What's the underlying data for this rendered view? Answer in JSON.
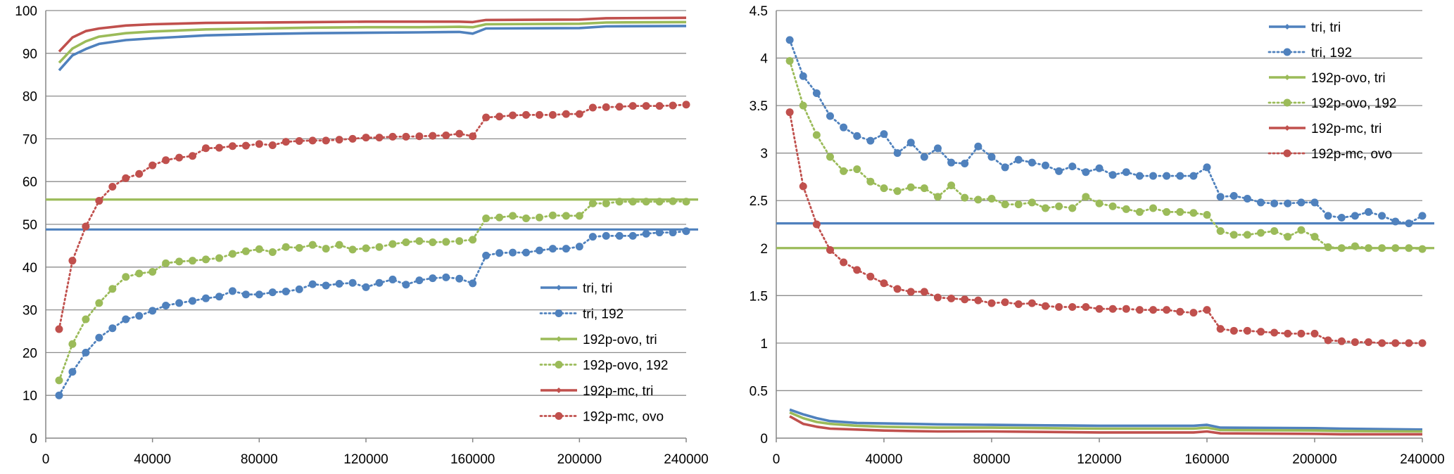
{
  "colors": {
    "blue": "#4f81bd",
    "green": "#9bbb59",
    "red": "#c0504d",
    "grid": "#8c8c8c",
    "axis": "#868686"
  },
  "chart_data": [
    {
      "type": "line",
      "xlim": [
        0,
        240000
      ],
      "ylim": [
        0,
        100
      ],
      "xticks": [
        "0",
        "40000",
        "80000",
        "120000",
        "160000",
        "200000",
        "240000"
      ],
      "yticks": [
        "0",
        "10",
        "20",
        "30",
        "40",
        "50",
        "60",
        "70",
        "80",
        "90",
        "100"
      ],
      "legend_position": "bottom-right",
      "reference_lines": [
        {
          "y": 48.8,
          "color": "blue"
        },
        {
          "y": 55.8,
          "color": "green"
        }
      ],
      "series": [
        {
          "name": "tri, tri",
          "color": "blue",
          "style": "solid",
          "x": [
            5000,
            10000,
            15000,
            20000,
            30000,
            40000,
            60000,
            80000,
            100000,
            120000,
            140000,
            155000,
            160000,
            165000,
            200000,
            210000,
            240000
          ],
          "y": [
            86,
            89.5,
            91,
            92.2,
            93.1,
            93.5,
            94.2,
            94.5,
            94.7,
            94.8,
            94.9,
            95,
            94.6,
            95.8,
            95.9,
            96.3,
            96.4
          ]
        },
        {
          "name": "tri, 192",
          "color": "blue",
          "style": "dotted",
          "x": [
            5000,
            10000,
            15000,
            20000,
            25000,
            30000,
            35000,
            40000,
            45000,
            50000,
            55000,
            60000,
            65000,
            70000,
            75000,
            80000,
            85000,
            90000,
            95000,
            100000,
            105000,
            110000,
            115000,
            120000,
            125000,
            130000,
            135000,
            140000,
            145000,
            150000,
            155000,
            160000,
            165000,
            170000,
            175000,
            180000,
            185000,
            190000,
            195000,
            200000,
            205000,
            210000,
            215000,
            220000,
            225000,
            230000,
            235000,
            240000
          ],
          "y": [
            10,
            15.5,
            20,
            23.5,
            25.7,
            27.8,
            28.6,
            29.8,
            31,
            31.6,
            32.1,
            32.7,
            33.1,
            34.4,
            33.6,
            33.6,
            34.1,
            34.3,
            34.8,
            36,
            35.7,
            36.1,
            36.3,
            35.3,
            36.3,
            37.1,
            35.9,
            36.9,
            37.4,
            37.6,
            37.3,
            36.2,
            42.7,
            43.3,
            43.4,
            43.4,
            43.9,
            44.3,
            44.3,
            44.8,
            47.1,
            47.3,
            47.3,
            47.3,
            47.8,
            48.1,
            48.1,
            48.4
          ]
        },
        {
          "name": "192p-ovo, tri",
          "color": "green",
          "style": "solid",
          "x": [
            5000,
            10000,
            15000,
            20000,
            30000,
            40000,
            60000,
            80000,
            100000,
            120000,
            140000,
            155000,
            160000,
            165000,
            200000,
            210000,
            240000
          ],
          "y": [
            87.8,
            91.1,
            92.8,
            93.9,
            94.7,
            95.1,
            95.6,
            95.8,
            96,
            96.1,
            96.1,
            96.2,
            96.1,
            96.8,
            96.9,
            97.2,
            97.3
          ]
        },
        {
          "name": "192p-ovo, 192",
          "color": "green",
          "style": "dotted",
          "x": [
            5000,
            10000,
            15000,
            20000,
            25000,
            30000,
            35000,
            40000,
            45000,
            50000,
            55000,
            60000,
            65000,
            70000,
            75000,
            80000,
            85000,
            90000,
            95000,
            100000,
            105000,
            110000,
            115000,
            120000,
            125000,
            130000,
            135000,
            140000,
            145000,
            150000,
            155000,
            160000,
            165000,
            170000,
            175000,
            180000,
            185000,
            190000,
            195000,
            200000,
            205000,
            210000,
            215000,
            220000,
            225000,
            230000,
            235000,
            240000
          ],
          "y": [
            13.5,
            22,
            27.8,
            31.6,
            34.9,
            37.7,
            38.5,
            38.9,
            40.9,
            41.3,
            41.5,
            41.8,
            42.1,
            43.1,
            43.7,
            44.2,
            43.5,
            44.7,
            44.5,
            45.2,
            44.3,
            45.2,
            44.1,
            44.4,
            44.7,
            45.4,
            45.8,
            46.1,
            45.8,
            45.9,
            46.1,
            46.4,
            51.4,
            51.6,
            52,
            51.4,
            51.6,
            52.1,
            52,
            52,
            54.9,
            54.9,
            55.3,
            55.3,
            55.3,
            55.3,
            55.4,
            55.3
          ]
        },
        {
          "name": "192p-mc, tri",
          "color": "red",
          "style": "solid",
          "x": [
            5000,
            10000,
            15000,
            20000,
            30000,
            40000,
            60000,
            80000,
            100000,
            120000,
            140000,
            155000,
            160000,
            165000,
            200000,
            210000,
            240000
          ],
          "y": [
            90.4,
            93.7,
            95.2,
            95.8,
            96.5,
            96.8,
            97.1,
            97.2,
            97.3,
            97.4,
            97.4,
            97.4,
            97.3,
            97.8,
            97.9,
            98.2,
            98.3
          ]
        },
        {
          "name": "192p-mc, ovo",
          "color": "red",
          "style": "dotted",
          "x": [
            5000,
            10000,
            15000,
            20000,
            25000,
            30000,
            35000,
            40000,
            45000,
            50000,
            55000,
            60000,
            65000,
            70000,
            75000,
            80000,
            85000,
            90000,
            95000,
            100000,
            105000,
            110000,
            115000,
            120000,
            125000,
            130000,
            135000,
            140000,
            145000,
            150000,
            155000,
            160000,
            165000,
            170000,
            175000,
            180000,
            185000,
            190000,
            195000,
            200000,
            205000,
            210000,
            215000,
            220000,
            225000,
            230000,
            235000,
            240000
          ],
          "y": [
            25.5,
            41.5,
            49.5,
            55.5,
            58.8,
            60.8,
            61.8,
            63.8,
            65,
            65.6,
            66,
            67.8,
            67.9,
            68.3,
            68.4,
            68.8,
            68.5,
            69.3,
            69.5,
            69.6,
            69.6,
            69.8,
            70,
            70.3,
            70.3,
            70.5,
            70.5,
            70.6,
            70.7,
            70.8,
            71.2,
            70.6,
            75,
            75.2,
            75.5,
            75.6,
            75.6,
            75.6,
            75.8,
            75.8,
            77.3,
            77.4,
            77.5,
            77.7,
            77.7,
            77.7,
            77.8,
            78
          ]
        }
      ]
    },
    {
      "type": "line",
      "xlim": [
        0,
        240000
      ],
      "ylim": [
        0,
        4.5
      ],
      "xticks": [
        "0",
        "40000",
        "80000",
        "120000",
        "160000",
        "200000",
        "240000"
      ],
      "yticks": [
        "0",
        "0.5",
        "1",
        "1.5",
        "2",
        "2.5",
        "3",
        "3.5",
        "4",
        "4.5"
      ],
      "legend_position": "top-right",
      "reference_lines": [
        {
          "y": 2.26,
          "color": "blue"
        },
        {
          "y": 2.0,
          "color": "green"
        }
      ],
      "series": [
        {
          "name": "tri, tri",
          "color": "blue",
          "style": "solid",
          "x": [
            5000,
            10000,
            15000,
            20000,
            30000,
            40000,
            50000,
            60000,
            80000,
            100000,
            120000,
            140000,
            155000,
            160000,
            165000,
            200000,
            210000,
            240000
          ],
          "y": [
            0.3,
            0.25,
            0.21,
            0.18,
            0.16,
            0.155,
            0.15,
            0.145,
            0.14,
            0.135,
            0.13,
            0.13,
            0.13,
            0.14,
            0.11,
            0.105,
            0.1,
            0.09
          ]
        },
        {
          "name": "tri, 192",
          "color": "blue",
          "style": "dotted",
          "x": [
            5000,
            10000,
            15000,
            20000,
            25000,
            30000,
            35000,
            40000,
            45000,
            50000,
            55000,
            60000,
            65000,
            70000,
            75000,
            80000,
            85000,
            90000,
            95000,
            100000,
            105000,
            110000,
            115000,
            120000,
            125000,
            130000,
            135000,
            140000,
            145000,
            150000,
            155000,
            160000,
            165000,
            170000,
            175000,
            180000,
            185000,
            190000,
            195000,
            200000,
            205000,
            210000,
            215000,
            220000,
            225000,
            230000,
            235000,
            240000
          ],
          "y": [
            4.19,
            3.81,
            3.63,
            3.39,
            3.27,
            3.18,
            3.13,
            3.2,
            3,
            3.11,
            2.96,
            3.05,
            2.9,
            2.89,
            3.07,
            2.96,
            2.85,
            2.93,
            2.9,
            2.87,
            2.81,
            2.86,
            2.8,
            2.84,
            2.77,
            2.8,
            2.76,
            2.76,
            2.76,
            2.76,
            2.76,
            2.85,
            2.54,
            2.55,
            2.52,
            2.48,
            2.47,
            2.47,
            2.48,
            2.48,
            2.34,
            2.32,
            2.34,
            2.38,
            2.34,
            2.28,
            2.26,
            2.34
          ]
        },
        {
          "name": "192p-ovo, tri",
          "color": "green",
          "style": "solid",
          "x": [
            5000,
            10000,
            15000,
            20000,
            30000,
            40000,
            50000,
            60000,
            80000,
            100000,
            120000,
            140000,
            155000,
            160000,
            165000,
            200000,
            210000,
            240000
          ],
          "y": [
            0.27,
            0.21,
            0.17,
            0.15,
            0.13,
            0.12,
            0.115,
            0.11,
            0.11,
            0.105,
            0.1,
            0.1,
            0.1,
            0.11,
            0.085,
            0.08,
            0.075,
            0.07
          ]
        },
        {
          "name": "192p-ovo, 192",
          "color": "green",
          "style": "dotted",
          "x": [
            5000,
            10000,
            15000,
            20000,
            25000,
            30000,
            35000,
            40000,
            45000,
            50000,
            55000,
            60000,
            65000,
            70000,
            75000,
            80000,
            85000,
            90000,
            95000,
            100000,
            105000,
            110000,
            115000,
            120000,
            125000,
            130000,
            135000,
            140000,
            145000,
            150000,
            155000,
            160000,
            165000,
            170000,
            175000,
            180000,
            185000,
            190000,
            195000,
            200000,
            205000,
            210000,
            215000,
            220000,
            225000,
            230000,
            235000,
            240000
          ],
          "y": [
            3.97,
            3.5,
            3.19,
            2.96,
            2.81,
            2.83,
            2.7,
            2.63,
            2.6,
            2.64,
            2.63,
            2.54,
            2.66,
            2.53,
            2.51,
            2.52,
            2.46,
            2.46,
            2.48,
            2.42,
            2.44,
            2.42,
            2.54,
            2.47,
            2.44,
            2.41,
            2.38,
            2.42,
            2.38,
            2.38,
            2.37,
            2.35,
            2.18,
            2.14,
            2.14,
            2.16,
            2.18,
            2.12,
            2.19,
            2.12,
            2.01,
            2,
            2.02,
            2,
            2,
            2,
            2,
            1.99
          ]
        },
        {
          "name": "192p-mc, tri",
          "color": "red",
          "style": "solid",
          "x": [
            5000,
            10000,
            15000,
            20000,
            30000,
            40000,
            50000,
            60000,
            80000,
            100000,
            120000,
            140000,
            155000,
            160000,
            165000,
            200000,
            210000,
            240000
          ],
          "y": [
            0.23,
            0.15,
            0.12,
            0.1,
            0.09,
            0.08,
            0.075,
            0.07,
            0.07,
            0.065,
            0.06,
            0.06,
            0.06,
            0.07,
            0.05,
            0.045,
            0.04,
            0.04
          ]
        },
        {
          "name": "192p-mc, ovo",
          "color": "red",
          "style": "dotted",
          "x": [
            5000,
            10000,
            15000,
            20000,
            25000,
            30000,
            35000,
            40000,
            45000,
            50000,
            55000,
            60000,
            65000,
            70000,
            75000,
            80000,
            85000,
            90000,
            95000,
            100000,
            105000,
            110000,
            115000,
            120000,
            125000,
            130000,
            135000,
            140000,
            145000,
            150000,
            155000,
            160000,
            165000,
            170000,
            175000,
            180000,
            185000,
            190000,
            195000,
            200000,
            205000,
            210000,
            215000,
            220000,
            225000,
            230000,
            235000,
            240000
          ],
          "y": [
            3.43,
            2.65,
            2.25,
            1.98,
            1.85,
            1.77,
            1.7,
            1.63,
            1.57,
            1.54,
            1.54,
            1.48,
            1.47,
            1.46,
            1.45,
            1.42,
            1.43,
            1.41,
            1.42,
            1.39,
            1.38,
            1.38,
            1.38,
            1.36,
            1.36,
            1.36,
            1.35,
            1.35,
            1.35,
            1.33,
            1.32,
            1.35,
            1.15,
            1.13,
            1.13,
            1.12,
            1.11,
            1.1,
            1.1,
            1.1,
            1.03,
            1.02,
            1.01,
            1.01,
            1,
            1,
            1,
            1
          ]
        }
      ]
    }
  ]
}
